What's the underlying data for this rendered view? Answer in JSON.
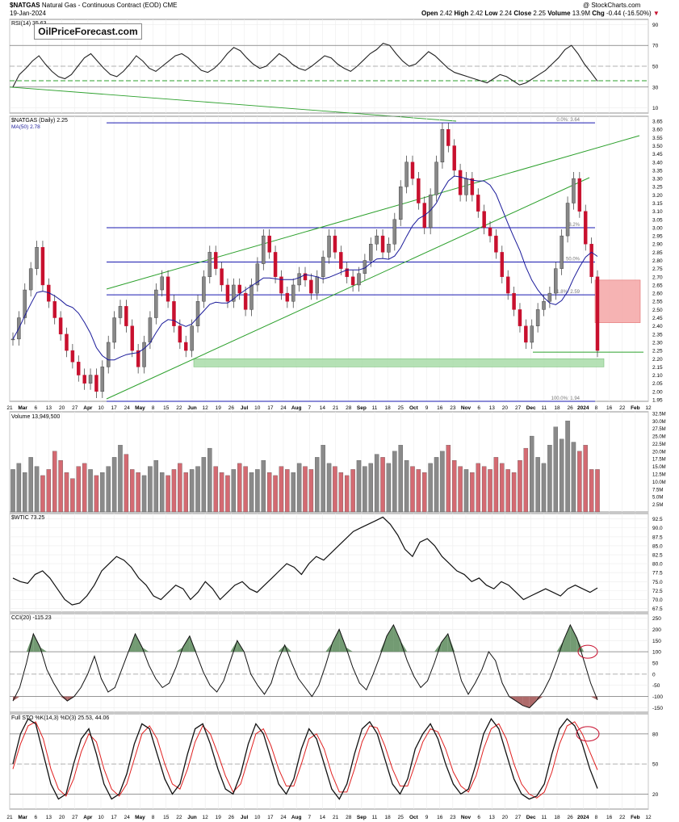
{
  "header": {
    "symbol": "$NATGAS",
    "description": "Natural Gas - Continuous Contract (EOD)  CME",
    "date": "19-Jan-2024",
    "credit": "@ StockCharts.com",
    "ohlc": {
      "open_label": "Open",
      "open": "2.42",
      "high_label": "High",
      "high": "2.42",
      "low_label": "Low",
      "low": "2.24",
      "close_label": "Close",
      "close": "2.25",
      "volume_label": "Volume",
      "volume": "13.9M",
      "chg_label": "Chg",
      "chg": "-0.44 (-16.50%)"
    }
  },
  "watermark": "OilPriceForecast.com",
  "colors": {
    "up": "#888888",
    "down": "#c8102e",
    "level": "#1a1ab0",
    "channel": "#2ca02c",
    "ma": "#1a1a9a",
    "zone_red": "#f4a6a6",
    "zone_green": "#a8dca8",
    "osc_green": "#5a8a5a",
    "osc_red": "#a05050",
    "stoch_d": "#e02020"
  },
  "chart_data": [
    {
      "type": "candlestick",
      "panel": "price",
      "legend": [
        "$NATGAS (Daily) 2.25",
        "MA(50) 2.78"
      ],
      "y_ticks": [
        "3.65",
        "3.60",
        "3.55",
        "3.50",
        "3.45",
        "3.40",
        "3.35",
        "3.30",
        "3.25",
        "3.20",
        "3.15",
        "3.10",
        "3.05",
        "3.00",
        "2.95",
        "2.90",
        "2.85",
        "2.80",
        "2.75",
        "2.70",
        "2.65",
        "2.60",
        "2.55",
        "2.50",
        "2.45",
        "2.40",
        "2.35",
        "2.30",
        "2.25",
        "2.20",
        "2.15",
        "2.10",
        "2.05",
        "2.00",
        "1.95"
      ],
      "ylim": [
        1.94,
        3.68
      ],
      "fib_levels": [
        {
          "label": "0.0%: 3.64",
          "value": 3.64
        },
        {
          "label": "38.2%",
          "value": 3.0
        },
        {
          "label": "50.0%",
          "value": 2.79
        },
        {
          "label": "61.8%: 2.59",
          "value": 2.59
        },
        {
          "label": "100.0%: 1.94",
          "value": 1.94
        }
      ],
      "support_line": 2.24,
      "red_zone": [
        2.42,
        2.68
      ],
      "green_zone": [
        2.15,
        2.2
      ],
      "close_series": [
        2.32,
        2.45,
        2.62,
        2.75,
        2.88,
        2.65,
        2.55,
        2.45,
        2.35,
        2.25,
        2.18,
        2.1,
        2.05,
        2.1,
        2.0,
        2.15,
        2.3,
        2.45,
        2.52,
        2.4,
        2.25,
        2.15,
        2.3,
        2.45,
        2.62,
        2.7,
        2.55,
        2.4,
        2.3,
        2.25,
        2.4,
        2.55,
        2.7,
        2.85,
        2.75,
        2.65,
        2.55,
        2.65,
        2.6,
        2.5,
        2.65,
        2.78,
        2.95,
        2.85,
        2.7,
        2.6,
        2.55,
        2.65,
        2.72,
        2.68,
        2.6,
        2.7,
        2.82,
        2.95,
        2.85,
        2.75,
        2.7,
        2.65,
        2.72,
        2.8,
        2.9,
        2.95,
        2.85,
        2.9,
        3.05,
        3.25,
        3.4,
        3.3,
        3.15,
        3.0,
        3.2,
        3.4,
        3.6,
        3.5,
        3.35,
        3.2,
        3.3,
        3.2,
        3.1,
        3.0,
        2.95,
        2.85,
        2.7,
        2.6,
        2.5,
        2.4,
        2.3,
        2.4,
        2.5,
        2.55,
        2.6,
        2.75,
        2.95,
        3.15,
        3.3,
        3.1,
        2.9,
        2.7,
        2.25
      ]
    },
    {
      "type": "bar",
      "panel": "volume",
      "legend": "Volume 13,949,500",
      "y_ticks": [
        "32.5M",
        "30.0M",
        "27.5M",
        "25.0M",
        "22.5M",
        "20.0M",
        "17.5M",
        "15.0M",
        "12.5M",
        "10.0M",
        "7.5M",
        "5.0M",
        "2.5M"
      ],
      "ylim": [
        0,
        33
      ],
      "values_millions": [
        14,
        16,
        13,
        18,
        15,
        12,
        14,
        20,
        17,
        13,
        11,
        15,
        16,
        14,
        12,
        13,
        15,
        18,
        22,
        19,
        14,
        13,
        12,
        15,
        17,
        13,
        12,
        14,
        16,
        13,
        14,
        15,
        18,
        21,
        15,
        13,
        12,
        14,
        16,
        15,
        13,
        14,
        17,
        13,
        12,
        15,
        14,
        13,
        16,
        15,
        14,
        18,
        22,
        16,
        15,
        13,
        12,
        14,
        17,
        15,
        16,
        19,
        18,
        16,
        20,
        22,
        17,
        15,
        14,
        13,
        16,
        18,
        20,
        22,
        17,
        15,
        14,
        13,
        16,
        15,
        14,
        18,
        16,
        14,
        13,
        17,
        21,
        25,
        18,
        16,
        22,
        28,
        24,
        30,
        23,
        20,
        22,
        14,
        14
      ]
    },
    {
      "type": "line",
      "panel": "wtic",
      "legend": "$WTIC 73.25",
      "y_ticks": [
        "92.5",
        "90.0",
        "87.5",
        "85.0",
        "82.5",
        "80.0",
        "77.5",
        "75.0",
        "72.5",
        "70.0",
        "67.5"
      ],
      "ylim": [
        66.5,
        94
      ],
      "values": [
        76,
        75,
        74.5,
        77,
        78,
        76,
        73,
        70,
        68.5,
        69,
        71,
        74,
        78,
        80,
        82,
        81,
        79,
        76,
        74,
        71,
        70,
        72,
        74,
        73,
        70,
        72,
        75,
        73,
        70,
        72,
        74,
        75,
        73,
        72,
        74,
        76,
        78,
        80,
        79,
        77,
        80,
        82,
        81,
        83,
        85,
        87,
        89,
        90,
        91,
        92,
        93,
        91,
        88,
        84,
        82,
        86,
        87,
        85,
        82,
        80,
        78,
        77,
        75,
        76,
        74,
        73,
        75,
        74,
        72,
        70,
        71,
        72,
        73,
        72,
        71,
        73,
        74,
        73,
        72,
        73.25
      ]
    },
    {
      "type": "area",
      "panel": "cci",
      "legend": "CCI(20) -115.23",
      "y_ticks": [
        "250",
        "200",
        "150",
        "100",
        "50",
        "0",
        "-50",
        "-100",
        "-150"
      ],
      "ylim": [
        -170,
        270
      ],
      "values": [
        -120,
        -60,
        50,
        180,
        120,
        20,
        -40,
        -90,
        -120,
        -100,
        -60,
        0,
        80,
        -20,
        -80,
        -60,
        20,
        100,
        180,
        120,
        40,
        -20,
        -60,
        -40,
        30,
        120,
        170,
        90,
        10,
        -50,
        -80,
        -30,
        60,
        150,
        100,
        0,
        -50,
        -90,
        -40,
        60,
        130,
        50,
        -20,
        -60,
        -100,
        -50,
        40,
        140,
        200,
        120,
        30,
        -40,
        -70,
        0,
        80,
        170,
        220,
        150,
        60,
        -10,
        -60,
        -30,
        50,
        140,
        180,
        80,
        -30,
        -90,
        -40,
        20,
        100,
        60,
        -40,
        -100,
        -120,
        -140,
        -150,
        -120,
        -80,
        -20,
        60,
        150,
        220,
        160,
        60,
        -40,
        -115.23
      ]
    },
    {
      "type": "line",
      "panel": "stochastic",
      "legend": "Full STO %K(14,3) %D(3) 25.53, 44.06",
      "y_ticks": [
        "80",
        "50",
        "20"
      ],
      "ylim": [
        5,
        100
      ],
      "series": [
        {
          "name": "%K",
          "values": [
            50,
            80,
            95,
            90,
            60,
            30,
            15,
            20,
            50,
            75,
            85,
            60,
            30,
            15,
            20,
            40,
            70,
            90,
            85,
            60,
            35,
            20,
            30,
            60,
            85,
            90,
            70,
            45,
            25,
            20,
            40,
            70,
            90,
            80,
            55,
            30,
            20,
            35,
            65,
            85,
            75,
            50,
            25,
            15,
            30,
            60,
            85,
            92,
            80,
            55,
            30,
            20,
            35,
            65,
            80,
            90,
            75,
            50,
            30,
            20,
            25,
            50,
            80,
            95,
            85,
            60,
            35,
            20,
            15,
            18,
            30,
            60,
            85,
            95,
            88,
            70,
            45,
            25.53
          ]
        },
        {
          "name": "%D",
          "values": [
            45,
            70,
            88,
            92,
            75,
            45,
            25,
            18,
            35,
            62,
            80,
            72,
            45,
            25,
            18,
            30,
            55,
            80,
            88,
            75,
            50,
            30,
            25,
            45,
            72,
            88,
            80,
            60,
            38,
            22,
            30,
            55,
            80,
            85,
            68,
            45,
            28,
            28,
            50,
            75,
            80,
            65,
            40,
            22,
            22,
            45,
            72,
            88,
            86,
            68,
            45,
            28,
            28,
            50,
            72,
            85,
            82,
            65,
            42,
            28,
            22,
            38,
            65,
            85,
            90,
            75,
            50,
            30,
            20,
            16,
            22,
            42,
            70,
            88,
            92,
            80,
            62,
            44.06
          ]
        }
      ]
    }
  ],
  "x_axis": {
    "ticks": [
      {
        "label": "21",
        "bold": false
      },
      {
        "label": "Mar",
        "bold": true
      },
      {
        "label": "6",
        "bold": false
      },
      {
        "label": "13",
        "bold": false
      },
      {
        "label": "20",
        "bold": false
      },
      {
        "label": "27",
        "bold": false
      },
      {
        "label": "Apr",
        "bold": true
      },
      {
        "label": "10",
        "bold": false
      },
      {
        "label": "17",
        "bold": false
      },
      {
        "label": "24",
        "bold": false
      },
      {
        "label": "May",
        "bold": true
      },
      {
        "label": "8",
        "bold": false
      },
      {
        "label": "15",
        "bold": false
      },
      {
        "label": "22",
        "bold": false
      },
      {
        "label": "Jun",
        "bold": true
      },
      {
        "label": "12",
        "bold": false
      },
      {
        "label": "19",
        "bold": false
      },
      {
        "label": "26",
        "bold": false
      },
      {
        "label": "Jul",
        "bold": true
      },
      {
        "label": "10",
        "bold": false
      },
      {
        "label": "17",
        "bold": false
      },
      {
        "label": "24",
        "bold": false
      },
      {
        "label": "Aug",
        "bold": true
      },
      {
        "label": "7",
        "bold": false
      },
      {
        "label": "14",
        "bold": false
      },
      {
        "label": "21",
        "bold": false
      },
      {
        "label": "28",
        "bold": false
      },
      {
        "label": "Sep",
        "bold": true
      },
      {
        "label": "11",
        "bold": false
      },
      {
        "label": "18",
        "bold": false
      },
      {
        "label": "25",
        "bold": false
      },
      {
        "label": "Oct",
        "bold": true
      },
      {
        "label": "9",
        "bold": false
      },
      {
        "label": "16",
        "bold": false
      },
      {
        "label": "23",
        "bold": false
      },
      {
        "label": "Nov",
        "bold": true
      },
      {
        "label": "6",
        "bold": false
      },
      {
        "label": "13",
        "bold": false
      },
      {
        "label": "20",
        "bold": false
      },
      {
        "label": "27",
        "bold": false
      },
      {
        "label": "Dec",
        "bold": true
      },
      {
        "label": "11",
        "bold": false
      },
      {
        "label": "18",
        "bold": false
      },
      {
        "label": "26",
        "bold": false
      },
      {
        "label": "2024",
        "bold": true
      },
      {
        "label": "8",
        "bold": false
      },
      {
        "label": "16",
        "bold": false
      },
      {
        "label": "22",
        "bold": false
      },
      {
        "label": "Feb",
        "bold": true
      },
      {
        "label": "12",
        "bold": false
      }
    ]
  },
  "rsi": {
    "legend": "RSI(14) 35.63",
    "y_ticks": [
      "90",
      "70",
      "50",
      "30",
      "10"
    ],
    "ylim": [
      5,
      95
    ],
    "values": [
      30,
      42,
      48,
      55,
      60,
      52,
      45,
      40,
      38,
      42,
      50,
      58,
      62,
      55,
      48,
      42,
      40,
      45,
      52,
      60,
      55,
      48,
      45,
      50,
      55,
      60,
      62,
      58,
      52,
      46,
      44,
      48,
      54,
      62,
      68,
      65,
      58,
      52,
      48,
      50,
      56,
      62,
      58,
      52,
      48,
      46,
      50,
      55,
      60,
      58,
      52,
      48,
      45,
      50,
      56,
      62,
      66,
      72,
      70,
      62,
      55,
      50,
      52,
      58,
      64,
      60,
      54,
      48,
      44,
      42,
      40,
      38,
      36,
      34,
      38,
      42,
      40,
      36,
      32,
      34,
      38,
      42,
      46,
      52,
      58,
      66,
      70,
      62,
      52,
      44,
      35.63
    ]
  }
}
